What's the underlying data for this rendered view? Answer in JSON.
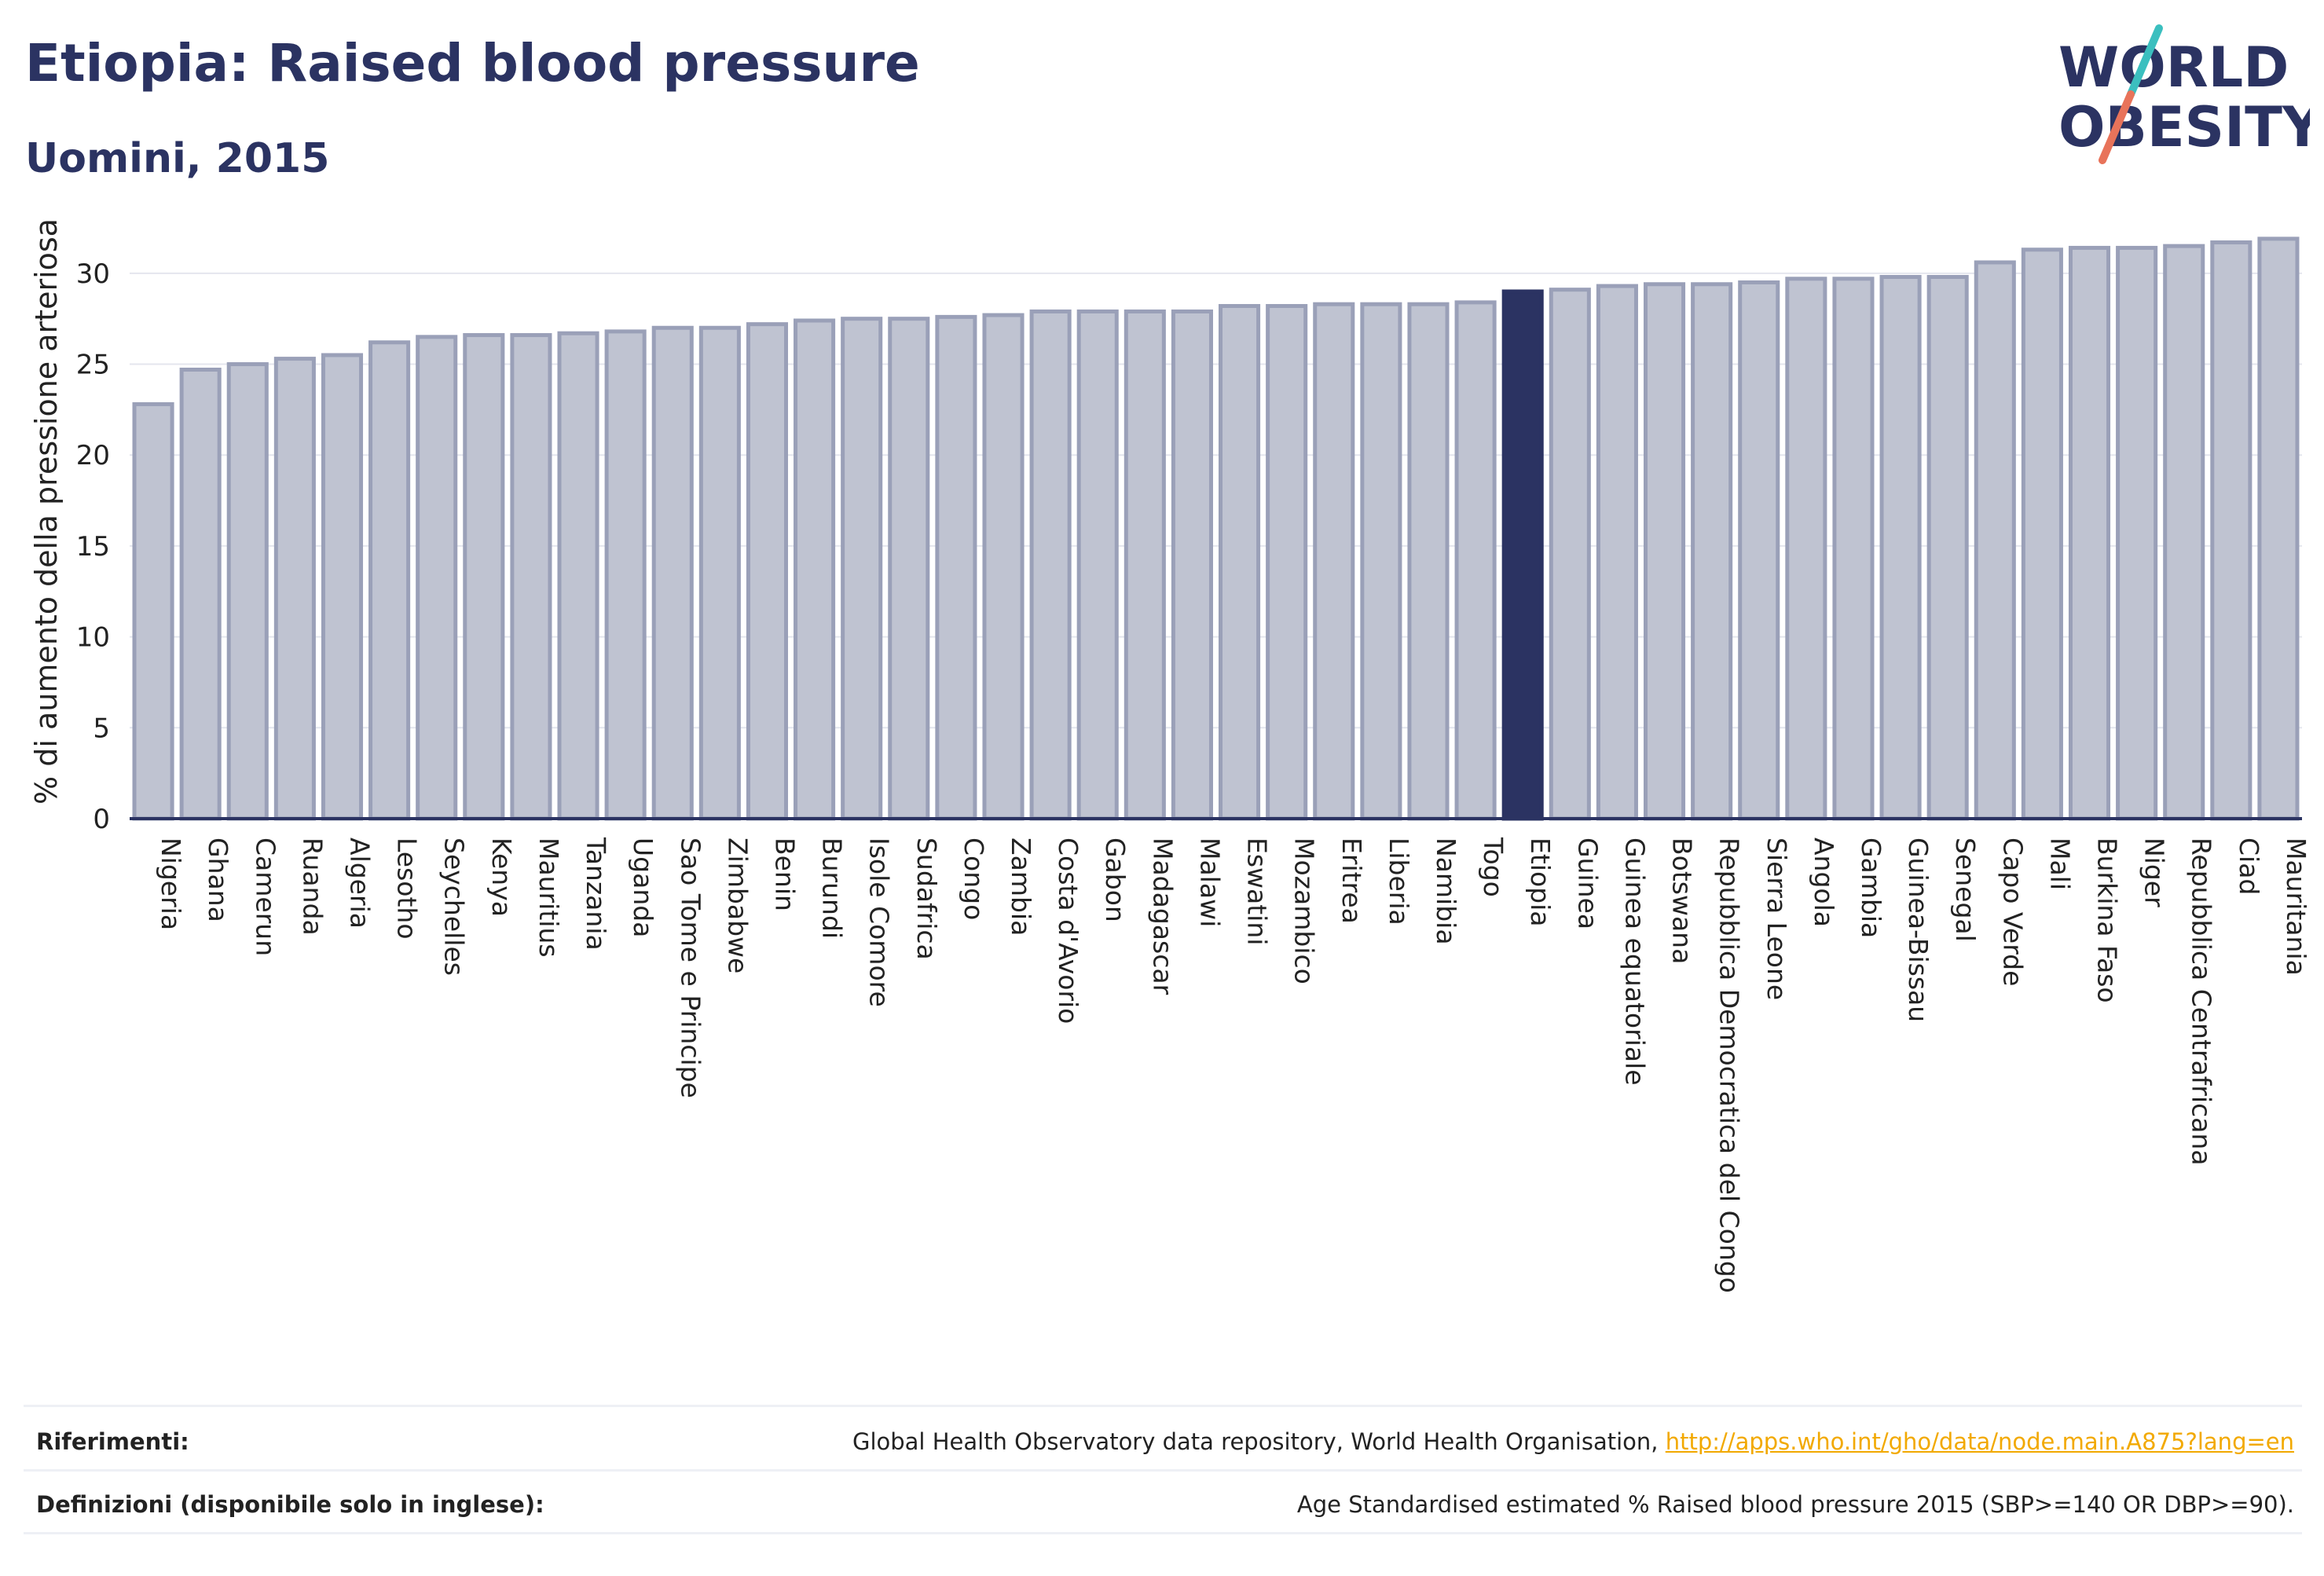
{
  "title": "Etiopia: Raised blood pressure",
  "subtitle": "Uomini, 2015",
  "logo": {
    "line1": "WORLD",
    "line2": "OBESITY",
    "colors": {
      "text": "#2b3362",
      "slash_top": "#3bbfbf",
      "slash_bottom": "#e8735a"
    }
  },
  "colors": {
    "bar": "#bfc3d1",
    "bar_border": "#9aa0b8",
    "highlight": "#2b3362",
    "axis": "#2b3362",
    "grid": "#e4e6ee"
  },
  "chart_data": {
    "type": "bar",
    "ylabel": "% di aumento della pressione arteriosa",
    "ylim": [
      0,
      32.5
    ],
    "yticks": [
      0,
      5,
      10,
      15,
      20,
      25,
      30
    ],
    "grid": true,
    "highlight": "Etiopia",
    "categories": [
      "Nigeria",
      "Ghana",
      "Camerun",
      "Ruanda",
      "Algeria",
      "Lesotho",
      "Seychelles",
      "Kenya",
      "Mauritius",
      "Tanzania",
      "Uganda",
      "Sao Tome e Principe",
      "Zimbabwe",
      "Benin",
      "Burundi",
      "Isole Comore",
      "Sudafrica",
      "Congo",
      "Zambia",
      "Costa d'Avorio",
      "Gabon",
      "Madagascar",
      "Malawi",
      "Eswatini",
      "Mozambico",
      "Eritrea",
      "Liberia",
      "Namibia",
      "Togo",
      "Etiopia",
      "Guinea",
      "Guinea equatoriale",
      "Botswana",
      "Repubblica Democratica del Congo",
      "Sierra Leone",
      "Angola",
      "Gambia",
      "Guinea-Bissau",
      "Senegal",
      "Capo Verde",
      "Mali",
      "Burkina Faso",
      "Niger",
      "Repubblica Centrafricana",
      "Ciad",
      "Mauritania"
    ],
    "values": [
      22.8,
      24.7,
      25.0,
      25.3,
      25.5,
      26.2,
      26.5,
      26.6,
      26.6,
      26.7,
      26.8,
      27.0,
      27.0,
      27.2,
      27.4,
      27.5,
      27.5,
      27.6,
      27.7,
      27.9,
      27.9,
      27.9,
      27.9,
      28.2,
      28.2,
      28.3,
      28.3,
      28.3,
      28.4,
      29.0,
      29.1,
      29.3,
      29.4,
      29.4,
      29.5,
      29.7,
      29.7,
      29.8,
      29.8,
      30.6,
      31.3,
      31.4,
      31.4,
      31.5,
      31.7,
      31.9
    ]
  },
  "footer": {
    "references_label": "Riferimenti:",
    "references_text": "Global Health Observatory data repository, World Health Organisation, ",
    "references_link": "http://apps.who.int/gho/data/node.main.A875?lang=en",
    "definitions_label": "Definizioni (disponibile solo in inglese):",
    "definitions_text": "Age Standardised estimated % Raised blood pressure 2015 (SBP>=140 OR DBP>=90)."
  }
}
